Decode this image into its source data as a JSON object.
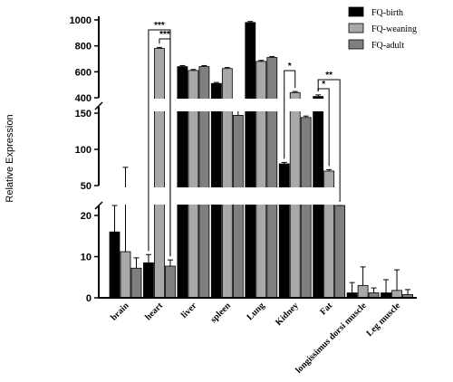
{
  "chart_data": {
    "type": "bar",
    "ylabel": "Relative Expression",
    "xlabel": "",
    "y_axis_segments": [
      {
        "range": [
          0,
          20
        ],
        "ticks": [
          "0",
          "10",
          "20"
        ]
      },
      {
        "range": [
          50,
          150
        ],
        "ticks": [
          "50",
          "100",
          "150"
        ]
      },
      {
        "range": [
          400,
          1000
        ],
        "ticks": [
          "400",
          "600",
          "800",
          "1000"
        ]
      }
    ],
    "categories": [
      "brain",
      "heart",
      "liver",
      "spleen",
      "Lung",
      "Kidney",
      "Fat",
      "longissimus dorsi muscle",
      "Leg muscle"
    ],
    "series": [
      {
        "name": "FQ-birth",
        "color": "#000000",
        "values": [
          16,
          8.5,
          640,
          510,
          980,
          80,
          410,
          1.2,
          1.2
        ],
        "errors": [
          6,
          2,
          8,
          8,
          8,
          2,
          12,
          2.5,
          3.2
        ]
      },
      {
        "name": "FQ-weaning",
        "color": "#a8a8a8",
        "values": [
          11.2,
          780,
          610,
          625,
          680,
          440,
          70,
          3,
          1.8
        ],
        "errors": [
          64,
          8,
          8,
          8,
          8,
          8,
          2,
          4.5,
          5
        ]
      },
      {
        "name": "FQ-adult",
        "color": "#7f7f7f",
        "values": [
          7.2,
          7.7,
          640,
          147,
          710,
          144,
          22.5,
          1.2,
          0.8
        ],
        "errors": [
          2.5,
          1.5,
          8,
          4,
          8,
          2,
          2,
          1.2,
          1.2
        ]
      }
    ],
    "significance": [
      {
        "category": "heart",
        "from": "FQ-birth",
        "to": "FQ-adult",
        "label": "***"
      },
      {
        "category": "heart",
        "from": "FQ-weaning",
        "to": "FQ-adult",
        "label": "***"
      },
      {
        "category": "Kidney",
        "from": "FQ-birth",
        "to": "FQ-weaning",
        "label": "*"
      },
      {
        "category": "Fat",
        "from": "FQ-birth",
        "to": "FQ-weaning",
        "label": "*"
      },
      {
        "category": "Fat",
        "from": "FQ-birth",
        "to": "FQ-adult",
        "label": "**"
      }
    ],
    "legend_position": "top-right",
    "grid": false
  }
}
